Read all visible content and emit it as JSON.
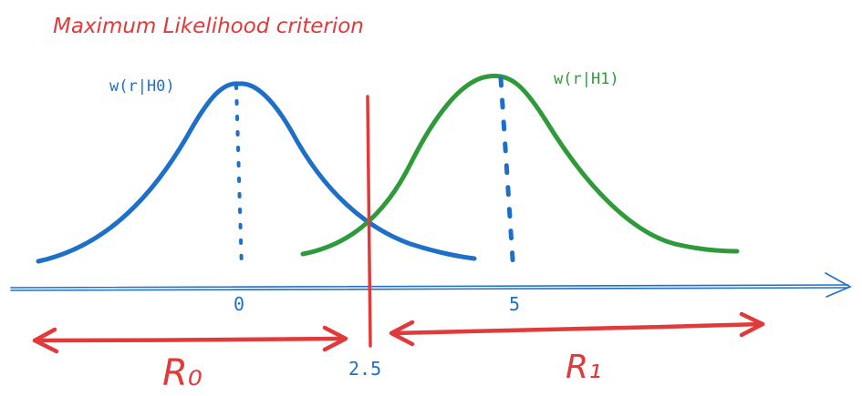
{
  "title": "Maximum Likelihood criterion",
  "curves": [
    {
      "label": "w(r|H0)",
      "mean_label": "0",
      "color": "#1e6fc8"
    },
    {
      "label": "w(r|H1)",
      "mean_label": "5",
      "color": "#2f9a3a"
    }
  ],
  "threshold": {
    "label": "2.5",
    "color": "#e03a3a"
  },
  "regions": [
    {
      "label": "R₀"
    },
    {
      "label": "R₁"
    }
  ],
  "colors": {
    "title": "#e03a3a",
    "axis": "#1e6fc8",
    "arrows": "#e03a3a",
    "label_blue": "#1e6fc8",
    "label_green": "#2f9a3a"
  }
}
